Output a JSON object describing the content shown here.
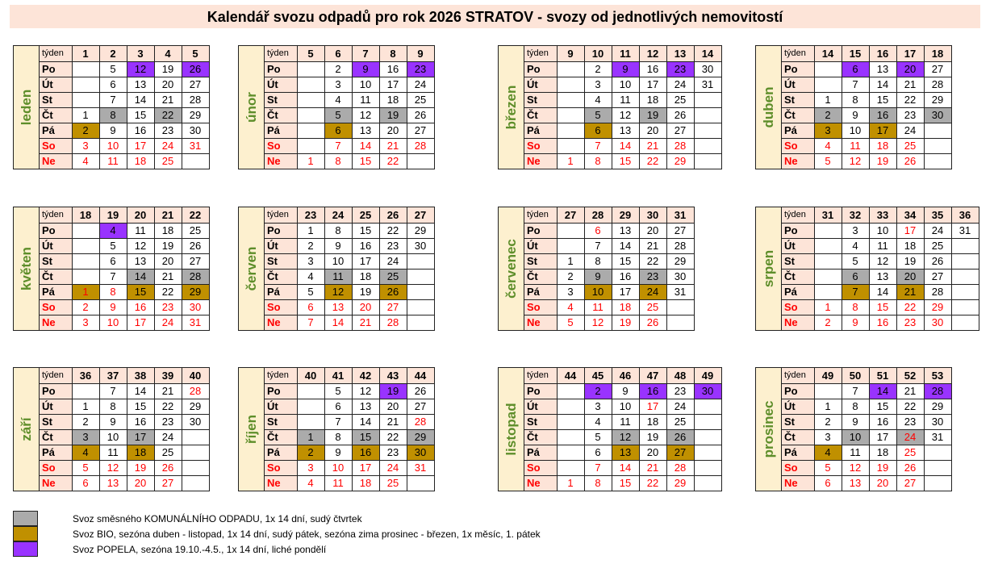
{
  "title": "Kalendář svozu odpadů pro rok 2026 STRATOV - svozy od jednotlivých nemovitostí",
  "week_label": "týden",
  "day_names": [
    "Po",
    "Út",
    "St",
    "Čt",
    "Pá",
    "So",
    "Ne"
  ],
  "colors": {
    "komunal": "#ababab",
    "bio": "#c09000",
    "popel": "#9933ff",
    "weekend_text": "#ff0000",
    "month_label": "#5e8e2a",
    "header_bg": "#fde4d8",
    "month_bg": "#fdf0cf"
  },
  "months": [
    {
      "name": "leden",
      "weeks": [
        "1",
        "2",
        "3",
        "4",
        "5"
      ],
      "days": [
        [
          "",
          "5",
          "12",
          "19",
          "26"
        ],
        [
          "",
          "6",
          "13",
          "20",
          "27"
        ],
        [
          "",
          "7",
          "14",
          "21",
          "28"
        ],
        [
          "1",
          "8",
          "15",
          "22",
          "29"
        ],
        [
          "2",
          "9",
          "16",
          "23",
          "30"
        ],
        [
          "3",
          "10",
          "17",
          "24",
          "31"
        ],
        [
          "4",
          "11",
          "18",
          "25",
          ""
        ]
      ],
      "marks": {
        "popel": [
          "0-2",
          "0-4"
        ],
        "komunal": [
          "3-1",
          "3-3"
        ],
        "bio": [
          "4-0"
        ]
      },
      "red": []
    },
    {
      "name": "únor",
      "weeks": [
        "5",
        "6",
        "7",
        "8",
        "9"
      ],
      "days": [
        [
          "",
          "2",
          "9",
          "16",
          "23"
        ],
        [
          "",
          "3",
          "10",
          "17",
          "24"
        ],
        [
          "",
          "4",
          "11",
          "18",
          "25"
        ],
        [
          "",
          "5",
          "12",
          "19",
          "26"
        ],
        [
          "",
          "6",
          "13",
          "20",
          "27"
        ],
        [
          "",
          "7",
          "14",
          "21",
          "28"
        ],
        [
          "1",
          "8",
          "15",
          "22",
          ""
        ]
      ],
      "marks": {
        "popel": [
          "0-2",
          "0-4"
        ],
        "komunal": [
          "3-1",
          "3-3"
        ],
        "bio": [
          "4-1"
        ]
      },
      "red": []
    },
    {
      "name": "březen",
      "weeks": [
        "9",
        "10",
        "11",
        "12",
        "13",
        "14"
      ],
      "days": [
        [
          "",
          "2",
          "9",
          "16",
          "23",
          "30"
        ],
        [
          "",
          "3",
          "10",
          "17",
          "24",
          "31"
        ],
        [
          "",
          "4",
          "11",
          "18",
          "25",
          ""
        ],
        [
          "",
          "5",
          "12",
          "19",
          "26",
          ""
        ],
        [
          "",
          "6",
          "13",
          "20",
          "27",
          ""
        ],
        [
          "",
          "7",
          "14",
          "21",
          "28",
          ""
        ],
        [
          "1",
          "8",
          "15",
          "22",
          "29",
          ""
        ]
      ],
      "marks": {
        "popel": [
          "0-2",
          "0-4"
        ],
        "komunal": [
          "3-1",
          "3-3"
        ],
        "bio": [
          "4-1"
        ]
      },
      "red": []
    },
    {
      "name": "duben",
      "weeks": [
        "14",
        "15",
        "16",
        "17",
        "18"
      ],
      "days": [
        [
          "",
          "6",
          "13",
          "20",
          "27"
        ],
        [
          "",
          "7",
          "14",
          "21",
          "28"
        ],
        [
          "1",
          "8",
          "15",
          "22",
          "29"
        ],
        [
          "2",
          "9",
          "16",
          "23",
          "30"
        ],
        [
          "3",
          "10",
          "17",
          "24",
          ""
        ],
        [
          "4",
          "11",
          "18",
          "25",
          ""
        ],
        [
          "5",
          "12",
          "19",
          "26",
          ""
        ]
      ],
      "marks": {
        "popel": [
          "0-1",
          "0-3"
        ],
        "komunal": [
          "3-0",
          "3-2",
          "3-4"
        ],
        "bio": [
          "4-0",
          "4-2"
        ]
      },
      "red": []
    },
    {
      "name": "květen",
      "weeks": [
        "18",
        "19",
        "20",
        "21",
        "22"
      ],
      "days": [
        [
          "",
          "4",
          "11",
          "18",
          "25"
        ],
        [
          "",
          "5",
          "12",
          "19",
          "26"
        ],
        [
          "",
          "6",
          "13",
          "20",
          "27"
        ],
        [
          "",
          "7",
          "14",
          "21",
          "28"
        ],
        [
          "1",
          "8",
          "15",
          "22",
          "29"
        ],
        [
          "2",
          "9",
          "16",
          "23",
          "30"
        ],
        [
          "3",
          "10",
          "17",
          "24",
          "31"
        ]
      ],
      "marks": {
        "popel": [
          "0-1"
        ],
        "komunal": [
          "3-2",
          "3-4"
        ],
        "bio": [
          "4-0",
          "4-2",
          "4-4"
        ]
      },
      "red": [
        "4-0",
        "4-1"
      ]
    },
    {
      "name": "červen",
      "weeks": [
        "23",
        "24",
        "25",
        "26",
        "27"
      ],
      "days": [
        [
          "1",
          "8",
          "15",
          "22",
          "29"
        ],
        [
          "2",
          "9",
          "16",
          "23",
          "30"
        ],
        [
          "3",
          "10",
          "17",
          "24",
          ""
        ],
        [
          "4",
          "11",
          "18",
          "25",
          ""
        ],
        [
          "5",
          "12",
          "19",
          "26",
          ""
        ],
        [
          "6",
          "13",
          "20",
          "27",
          ""
        ],
        [
          "7",
          "14",
          "21",
          "28",
          ""
        ]
      ],
      "marks": {
        "popel": [],
        "komunal": [
          "3-1",
          "3-3"
        ],
        "bio": [
          "4-1",
          "4-3"
        ]
      },
      "red": []
    },
    {
      "name": "červenec",
      "weeks": [
        "27",
        "28",
        "29",
        "30",
        "31"
      ],
      "days": [
        [
          "",
          "6",
          "13",
          "20",
          "27"
        ],
        [
          "",
          "7",
          "14",
          "21",
          "28"
        ],
        [
          "1",
          "8",
          "15",
          "22",
          "29"
        ],
        [
          "2",
          "9",
          "16",
          "23",
          "30"
        ],
        [
          "3",
          "10",
          "17",
          "24",
          "31"
        ],
        [
          "4",
          "11",
          "18",
          "25",
          ""
        ],
        [
          "5",
          "12",
          "19",
          "26",
          ""
        ]
      ],
      "marks": {
        "popel": [],
        "komunal": [
          "3-1",
          "3-3"
        ],
        "bio": [
          "4-1",
          "4-3"
        ]
      },
      "red": [
        "0-1"
      ]
    },
    {
      "name": "srpen",
      "weeks": [
        "31",
        "32",
        "33",
        "34",
        "35",
        "36"
      ],
      "days": [
        [
          "",
          "3",
          "10",
          "17",
          "24",
          "31"
        ],
        [
          "",
          "4",
          "11",
          "18",
          "25",
          ""
        ],
        [
          "",
          "5",
          "12",
          "19",
          "26",
          ""
        ],
        [
          "",
          "6",
          "13",
          "20",
          "27",
          ""
        ],
        [
          "",
          "7",
          "14",
          "21",
          "28",
          ""
        ],
        [
          "1",
          "8",
          "15",
          "22",
          "29",
          ""
        ],
        [
          "2",
          "9",
          "16",
          "23",
          "30",
          ""
        ]
      ],
      "marks": {
        "popel": [],
        "komunal": [
          "3-1",
          "3-3"
        ],
        "bio": [
          "4-1",
          "4-3"
        ]
      },
      "red": [
        "0-3"
      ]
    },
    {
      "name": "září",
      "weeks": [
        "36",
        "37",
        "38",
        "39",
        "40"
      ],
      "days": [
        [
          "",
          "7",
          "14",
          "21",
          "28"
        ],
        [
          "1",
          "8",
          "15",
          "22",
          "29"
        ],
        [
          "2",
          "9",
          "16",
          "23",
          "30"
        ],
        [
          "3",
          "10",
          "17",
          "24",
          ""
        ],
        [
          "4",
          "11",
          "18",
          "25",
          ""
        ],
        [
          "5",
          "12",
          "19",
          "26",
          ""
        ],
        [
          "6",
          "13",
          "20",
          "27",
          ""
        ]
      ],
      "marks": {
        "popel": [],
        "komunal": [
          "3-0",
          "3-2"
        ],
        "bio": [
          "4-0",
          "4-2"
        ]
      },
      "red": [
        "0-4"
      ]
    },
    {
      "name": "říjen",
      "weeks": [
        "40",
        "41",
        "42",
        "43",
        "44"
      ],
      "days": [
        [
          "",
          "5",
          "12",
          "19",
          "26"
        ],
        [
          "",
          "6",
          "13",
          "20",
          "27"
        ],
        [
          "",
          "7",
          "14",
          "21",
          "28"
        ],
        [
          "1",
          "8",
          "15",
          "22",
          "29"
        ],
        [
          "2",
          "9",
          "16",
          "23",
          "30"
        ],
        [
          "3",
          "10",
          "17",
          "24",
          "31"
        ],
        [
          "4",
          "11",
          "18",
          "25",
          ""
        ]
      ],
      "marks": {
        "popel": [
          "0-3"
        ],
        "komunal": [
          "3-0",
          "3-2",
          "3-4"
        ],
        "bio": [
          "4-0",
          "4-2",
          "4-4"
        ]
      },
      "red": [
        "2-4"
      ]
    },
    {
      "name": "listopad",
      "weeks": [
        "44",
        "45",
        "46",
        "47",
        "48",
        "49"
      ],
      "days": [
        [
          "",
          "2",
          "9",
          "16",
          "23",
          "30"
        ],
        [
          "",
          "3",
          "10",
          "17",
          "24",
          ""
        ],
        [
          "",
          "4",
          "11",
          "18",
          "25",
          ""
        ],
        [
          "",
          "5",
          "12",
          "19",
          "26",
          ""
        ],
        [
          "",
          "6",
          "13",
          "20",
          "27",
          ""
        ],
        [
          "",
          "7",
          "14",
          "21",
          "28",
          ""
        ],
        [
          "1",
          "8",
          "15",
          "22",
          "29",
          ""
        ]
      ],
      "marks": {
        "popel": [
          "0-1",
          "0-3",
          "0-5"
        ],
        "komunal": [
          "3-2",
          "3-4"
        ],
        "bio": [
          "4-2",
          "4-4"
        ]
      },
      "red": [
        "1-3"
      ]
    },
    {
      "name": "prosinec",
      "weeks": [
        "49",
        "50",
        "51",
        "52",
        "53"
      ],
      "days": [
        [
          "",
          "7",
          "14",
          "21",
          "28"
        ],
        [
          "1",
          "8",
          "15",
          "22",
          "29"
        ],
        [
          "2",
          "9",
          "16",
          "23",
          "30"
        ],
        [
          "3",
          "10",
          "17",
          "24",
          "31"
        ],
        [
          "4",
          "11",
          "18",
          "25",
          ""
        ],
        [
          "5",
          "12",
          "19",
          "26",
          ""
        ],
        [
          "6",
          "13",
          "20",
          "27",
          ""
        ]
      ],
      "marks": {
        "popel": [
          "0-2",
          "0-4"
        ],
        "komunal": [
          "3-1",
          "3-3"
        ],
        "bio": [
          "4-0"
        ]
      },
      "red": [
        "3-3",
        "4-3"
      ]
    }
  ],
  "legend": [
    {
      "key": "komunal",
      "text": "Svoz směsného KOMUNÁLNÍHO ODPADU, 1x 14 dní, sudý čtvrtek"
    },
    {
      "key": "bio",
      "text": "Svoz BIO, sezóna duben - listopad, 1x 14 dní, sudý pátek, sezóna zima prosinec - březen, 1x měsíc, 1. pátek"
    },
    {
      "key": "popel",
      "text": "Svoz POPELA, sezóna 19.10.-4.5., 1x 14 dní, liché pondělí"
    }
  ]
}
